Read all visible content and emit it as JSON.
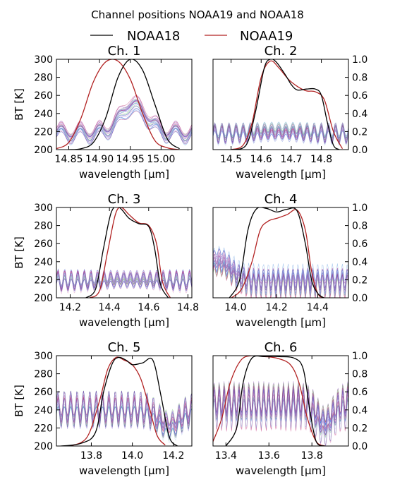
{
  "figure": {
    "suptitle": "Channel positions NOAA19 and NOAA18",
    "legend": {
      "placement": "top-center",
      "entries": [
        {
          "name": "NOAA18",
          "color": "#000000"
        },
        {
          "name": "NOAA19",
          "color": "#b22222"
        }
      ]
    },
    "spectra_colors": [
      "#3a6fd8",
      "#7b3fb8",
      "#c03070",
      "#6aa0e0",
      "#a070d0",
      "#e090c0",
      "#7ccf7c",
      "#b8d0f0"
    ]
  },
  "chart_data": [
    {
      "type": "line",
      "title": "Ch. 1",
      "xlabel": "wavelength [µm]",
      "ylabel": "BT [K]",
      "xlim": [
        14.83,
        15.05
      ],
      "ylim": [
        200,
        300
      ],
      "xticks": [
        14.85,
        14.9,
        14.95,
        15.0
      ],
      "xtick_labels": [
        "14.85",
        "14.90",
        "14.95",
        "15.00"
      ],
      "yticks": [
        200,
        220,
        240,
        260,
        280,
        300
      ],
      "y2lim": [
        0,
        1
      ],
      "y2ticks": [],
      "srf": {
        "NOAA18": {
          "x": [
            14.85,
            14.87,
            14.89,
            14.91,
            14.93,
            14.95,
            14.97,
            14.99,
            15.01,
            15.03
          ],
          "y": [
            0.0,
            0.01,
            0.08,
            0.35,
            0.8,
            1.0,
            0.88,
            0.5,
            0.12,
            0.01
          ]
        },
        "NOAA19": {
          "x": [
            14.83,
            14.85,
            14.87,
            14.89,
            14.91,
            14.93,
            14.95,
            14.97,
            14.99,
            15.01,
            15.03
          ],
          "y": [
            0.01,
            0.08,
            0.35,
            0.75,
            0.97,
            0.98,
            0.78,
            0.4,
            0.1,
            0.02,
            0.0
          ]
        }
      },
      "spectra": {
        "count": 28,
        "base_bt": 218,
        "band_bt": 248,
        "band_center": 14.955,
        "band_width": 0.03,
        "ripple_amp": 8,
        "ripple_period": 0.031,
        "spread": 10
      }
    },
    {
      "type": "line",
      "title": "Ch. 2",
      "xlabel": "wavelength [µm]",
      "ylabel": "",
      "xlim": [
        14.44,
        14.89
      ],
      "ylim": [
        200,
        300
      ],
      "xticks": [
        14.5,
        14.6,
        14.7,
        14.8
      ],
      "xtick_labels": [
        "14.5",
        "14.6",
        "14.7",
        "14.8"
      ],
      "yticks": [],
      "y2lim": [
        0,
        1
      ],
      "y2ticks": [
        0.0,
        0.2,
        0.4,
        0.6,
        0.8,
        1.0
      ],
      "y2tick_labels": [
        "0.0",
        "0.2",
        "0.4",
        "0.6",
        "0.8",
        "1.0"
      ],
      "srf": {
        "NOAA18": {
          "x": [
            14.5,
            14.55,
            14.58,
            14.61,
            14.63,
            14.65,
            14.68,
            14.7,
            14.72,
            14.75,
            14.78,
            14.8,
            14.82,
            14.84,
            14.86
          ],
          "y": [
            0.0,
            0.05,
            0.4,
            0.9,
            1.0,
            0.97,
            0.83,
            0.72,
            0.66,
            0.67,
            0.67,
            0.6,
            0.3,
            0.05,
            0.0
          ]
        },
        "NOAA19": {
          "x": [
            14.5,
            14.54,
            14.57,
            14.6,
            14.63,
            14.66,
            14.69,
            14.72,
            14.75,
            14.78,
            14.81,
            14.84,
            14.87
          ],
          "y": [
            0.0,
            0.05,
            0.3,
            0.8,
            0.98,
            0.9,
            0.78,
            0.7,
            0.65,
            0.64,
            0.55,
            0.2,
            0.01
          ]
        }
      },
      "spectra": {
        "count": 28,
        "base_bt": 218,
        "band_bt": 220,
        "band_center": 14.66,
        "band_width": 0.1,
        "ripple_amp": 9,
        "ripple_period": 0.0236,
        "spread": 7
      }
    },
    {
      "type": "line",
      "title": "Ch. 3",
      "xlabel": "wavelength [µm]",
      "ylabel": "BT [K]",
      "xlim": [
        14.13,
        14.82
      ],
      "ylim": [
        200,
        300
      ],
      "xticks": [
        14.2,
        14.4,
        14.6,
        14.8
      ],
      "xtick_labels": [
        "14.2",
        "14.4",
        "14.6",
        "14.8"
      ],
      "yticks": [
        200,
        220,
        240,
        260,
        280,
        300
      ],
      "y2lim": [
        0,
        1
      ],
      "y2ticks": [],
      "srf": {
        "NOAA18": {
          "x": [
            14.28,
            14.33,
            14.37,
            14.41,
            14.45,
            14.5,
            14.55,
            14.6,
            14.63,
            14.66,
            14.7
          ],
          "y": [
            0.0,
            0.1,
            0.55,
            0.95,
            1.0,
            0.88,
            0.82,
            0.79,
            0.55,
            0.15,
            0.0
          ]
        },
        "NOAA19": {
          "x": [
            14.3,
            14.35,
            14.39,
            14.43,
            14.46,
            14.5,
            14.55,
            14.6,
            14.64,
            14.67,
            14.71
          ],
          "y": [
            0.0,
            0.08,
            0.5,
            0.92,
            1.0,
            0.92,
            0.83,
            0.8,
            0.6,
            0.18,
            0.0
          ]
        }
      },
      "spectra": {
        "count": 28,
        "base_bt": 218,
        "band_bt": 220,
        "band_center": 14.5,
        "band_width": 0.2,
        "ripple_amp": 10,
        "ripple_period": 0.0335,
        "spread": 6
      }
    },
    {
      "type": "line",
      "title": "Ch. 4",
      "xlabel": "wavelength [µm]",
      "ylabel": "",
      "xlim": [
        13.89,
        14.55
      ],
      "ylim": [
        200,
        300
      ],
      "xticks": [
        14.0,
        14.2,
        14.4
      ],
      "xtick_labels": [
        "14.0",
        "14.2",
        "14.4"
      ],
      "yticks": [],
      "y2lim": [
        0,
        1
      ],
      "y2ticks": [
        0.0,
        0.2,
        0.4,
        0.6,
        0.8,
        1.0
      ],
      "y2tick_labels": [
        "0.0",
        "0.2",
        "0.4",
        "0.6",
        "0.8",
        "1.0"
      ],
      "srf": {
        "NOAA18": {
          "x": [
            13.97,
            14.02,
            14.06,
            14.1,
            14.15,
            14.2,
            14.25,
            14.3,
            14.34,
            14.37,
            14.4,
            14.43
          ],
          "y": [
            0.0,
            0.2,
            0.75,
            0.98,
            0.99,
            0.95,
            0.98,
            0.96,
            0.6,
            0.2,
            0.05,
            0.0
          ]
        },
        "NOAA19": {
          "x": [
            13.98,
            14.03,
            14.08,
            14.12,
            14.16,
            14.2,
            14.25,
            14.3,
            14.34,
            14.37,
            14.4,
            14.43
          ],
          "y": [
            0.0,
            0.1,
            0.4,
            0.75,
            0.85,
            0.88,
            0.92,
            0.97,
            0.75,
            0.3,
            0.05,
            0.0
          ]
        }
      },
      "spectra": {
        "count": 28,
        "base_bt": 218,
        "band_bt": 240,
        "band_center": 13.92,
        "band_width": 0.08,
        "ripple_amp": 12,
        "ripple_period": 0.024,
        "spread": 12
      }
    },
    {
      "type": "line",
      "title": "Ch. 5",
      "xlabel": "wavelength [µm]",
      "ylabel": "BT [K]",
      "xlim": [
        13.63,
        14.29
      ],
      "ylim": [
        200,
        300
      ],
      "xticks": [
        13.8,
        14.0,
        14.2
      ],
      "xtick_labels": [
        "13.8",
        "14.0",
        "14.2"
      ],
      "yticks": [
        200,
        220,
        240,
        260,
        280,
        300
      ],
      "y2lim": [
        0,
        1
      ],
      "y2ticks": [],
      "srf": {
        "NOAA18": {
          "x": [
            13.65,
            13.75,
            13.82,
            13.86,
            13.9,
            13.93,
            13.97,
            14.0,
            14.05,
            14.1,
            14.14,
            14.18,
            14.22
          ],
          "y": [
            0.0,
            0.03,
            0.15,
            0.6,
            0.9,
            0.98,
            0.95,
            0.9,
            0.92,
            0.95,
            0.55,
            0.1,
            0.0
          ]
        },
        "NOAA19": {
          "x": [
            13.7,
            13.78,
            13.84,
            13.88,
            13.92,
            13.96,
            14.0,
            14.04,
            14.08,
            14.12,
            14.16
          ],
          "y": [
            0.0,
            0.1,
            0.5,
            0.85,
            0.98,
            0.95,
            0.9,
            0.75,
            0.45,
            0.12,
            0.01
          ]
        }
      },
      "spectra": {
        "count": 28,
        "base_bt": 240,
        "band_bt": 222,
        "band_center": 14.18,
        "band_width": 0.07,
        "ripple_amp": 15,
        "ripple_period": 0.031,
        "spread": 12
      }
    },
    {
      "type": "line",
      "title": "Ch. 6",
      "xlabel": "wavelength [µm]",
      "ylabel": "",
      "xlim": [
        13.34,
        13.97
      ],
      "ylim": [
        200,
        300
      ],
      "xticks": [
        13.4,
        13.6,
        13.8
      ],
      "xtick_labels": [
        "13.4",
        "13.6",
        "13.8"
      ],
      "yticks": [],
      "y2lim": [
        0,
        1
      ],
      "y2ticks": [
        0.0,
        0.2,
        0.4,
        0.6,
        0.8,
        1.0
      ],
      "y2tick_labels": [
        "0.0",
        "0.2",
        "0.4",
        "0.6",
        "0.8",
        "1.0"
      ],
      "srf": {
        "NOAA18": {
          "x": [
            13.4,
            13.45,
            13.48,
            13.52,
            13.58,
            13.65,
            13.72,
            13.76,
            13.79,
            13.82,
            13.86
          ],
          "y": [
            0.0,
            0.2,
            0.7,
            0.97,
            0.99,
            0.99,
            0.97,
            0.85,
            0.4,
            0.05,
            0.0
          ]
        },
        "NOAA19": {
          "x": [
            13.34,
            13.38,
            13.42,
            13.47,
            13.52,
            13.58,
            13.64,
            13.7,
            13.74,
            13.78,
            13.82,
            13.86
          ],
          "y": [
            0.05,
            0.3,
            0.7,
            0.95,
            1.0,
            0.99,
            0.97,
            0.9,
            0.7,
            0.3,
            0.05,
            0.0
          ]
        }
      },
      "spectra": {
        "count": 28,
        "base_bt": 245,
        "band_bt": 222,
        "band_center": 13.86,
        "band_width": 0.05,
        "ripple_amp": 18,
        "ripple_period": 0.023,
        "spread": 14
      }
    }
  ]
}
